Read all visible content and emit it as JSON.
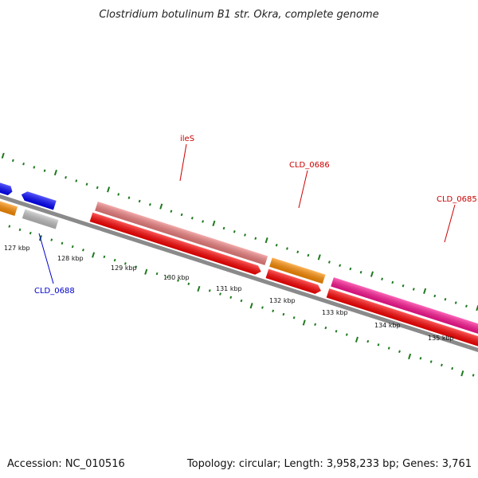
{
  "title": "Clostridium botulinum B1 str. Okra, complete genome",
  "footer": {
    "accession": "Accession: NC_010516",
    "summary": "Topology: circular; Length: 3,958,233 bp; Genes: 3,761"
  },
  "colors": {
    "backbone": "#8a8a8a",
    "tick": "#1f7a1f",
    "gene_label_red": "#cc0000",
    "gene_label_blue": "#0000cc"
  },
  "ticks": [
    {
      "label": "127 kbp"
    },
    {
      "label": "128 kbp"
    },
    {
      "label": "129 kbp"
    },
    {
      "label": "130 kbp"
    },
    {
      "label": "131 kbp"
    },
    {
      "label": "132 kbp"
    },
    {
      "label": "133 kbp"
    },
    {
      "label": "134 kbp"
    },
    {
      "label": "135 kbp"
    }
  ],
  "gene_labels": [
    {
      "name": "ileS",
      "color": "#cc0000"
    },
    {
      "name": "CLD_0686",
      "color": "#cc0000"
    },
    {
      "name": "CLD_0685",
      "color": "#cc0000"
    },
    {
      "name": "CLD_0688",
      "color": "#0000cc"
    }
  ]
}
